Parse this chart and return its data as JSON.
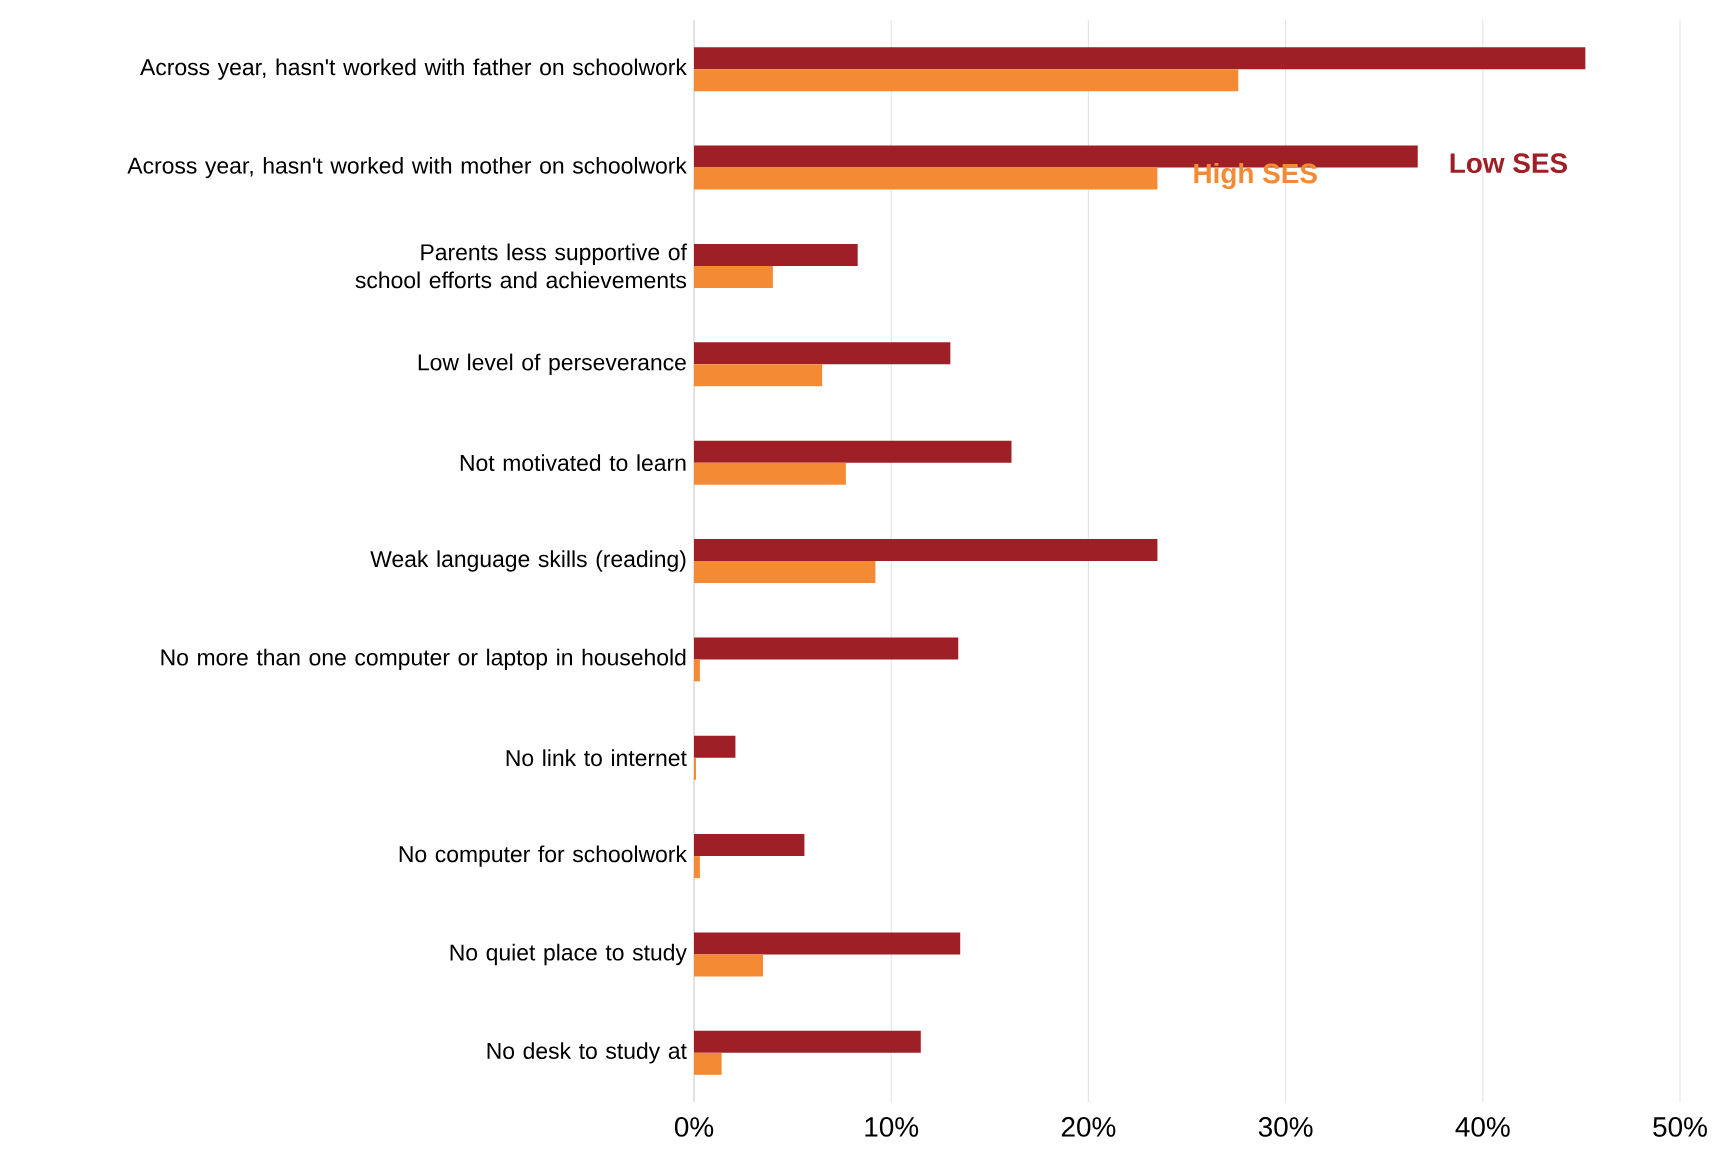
{
  "chart_data": {
    "type": "bar",
    "orientation": "horizontal",
    "categories": [
      "Across year, hasn't worked with father on schoolwork",
      "Across year, hasn't worked with mother on schoolwork",
      "Parents less supportive of school efforts and achievements",
      "Low level of perseverance",
      "Not motivated to learn",
      "Weak language skills (reading)",
      "No more than one computer or laptop in household",
      "No link to internet",
      "No computer for schoolwork",
      "No quiet place to study",
      "No desk to study at"
    ],
    "series": [
      {
        "name": "Low SES",
        "color": "#9e1f26",
        "values": [
          45.2,
          36.7,
          8.3,
          13.0,
          16.1,
          23.5,
          13.4,
          2.1,
          5.6,
          13.5,
          11.5
        ]
      },
      {
        "name": "High SES",
        "color": "#f58a34",
        "values": [
          27.6,
          23.5,
          4.0,
          6.5,
          7.7,
          9.2,
          0.3,
          0.1,
          0.3,
          3.5,
          1.4
        ]
      }
    ],
    "xlim": [
      0,
      50
    ],
    "xticks": [
      {
        "value": 0,
        "label": "0%"
      },
      {
        "value": 10,
        "label": "10%"
      },
      {
        "value": 20,
        "label": "20%"
      },
      {
        "value": 30,
        "label": "30%"
      },
      {
        "value": 40,
        "label": "40%"
      },
      {
        "value": 50,
        "label": "50%"
      }
    ],
    "grid": "x",
    "legend": false
  }
}
